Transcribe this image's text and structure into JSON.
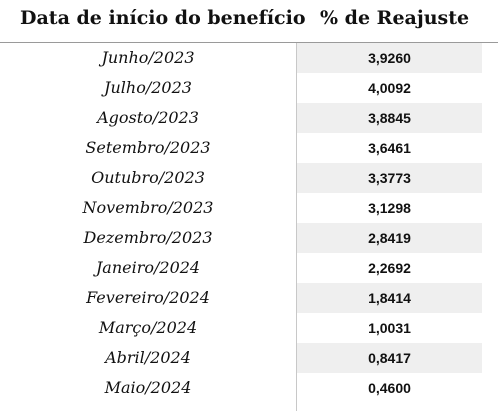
{
  "table": {
    "headers": {
      "date": "Data de início do benefício",
      "percent": "% de Reajuste"
    },
    "rows": [
      {
        "date": "Junho/2023",
        "percent": "3,9260"
      },
      {
        "date": "Julho/2023",
        "percent": "4,0092"
      },
      {
        "date": "Agosto/2023",
        "percent": "3,8845"
      },
      {
        "date": "Setembro/2023",
        "percent": "3,6461"
      },
      {
        "date": "Outubro/2023",
        "percent": "3,3773"
      },
      {
        "date": "Novembro/2023",
        "percent": "3,1298"
      },
      {
        "date": "Dezembro/2023",
        "percent": "2,8419"
      },
      {
        "date": "Janeiro/2024",
        "percent": "2,2692"
      },
      {
        "date": "Fevereiro/2024",
        "percent": "1,8414"
      },
      {
        "date": "Março/2024",
        "percent": "1,0031"
      },
      {
        "date": "Abril/2024",
        "percent": "0,8417"
      },
      {
        "date": "Maio/2024",
        "percent": "0,4600"
      }
    ]
  },
  "colors": {
    "stripe": "#efefef",
    "text": "#111111",
    "rule": "#9a9a9a"
  }
}
